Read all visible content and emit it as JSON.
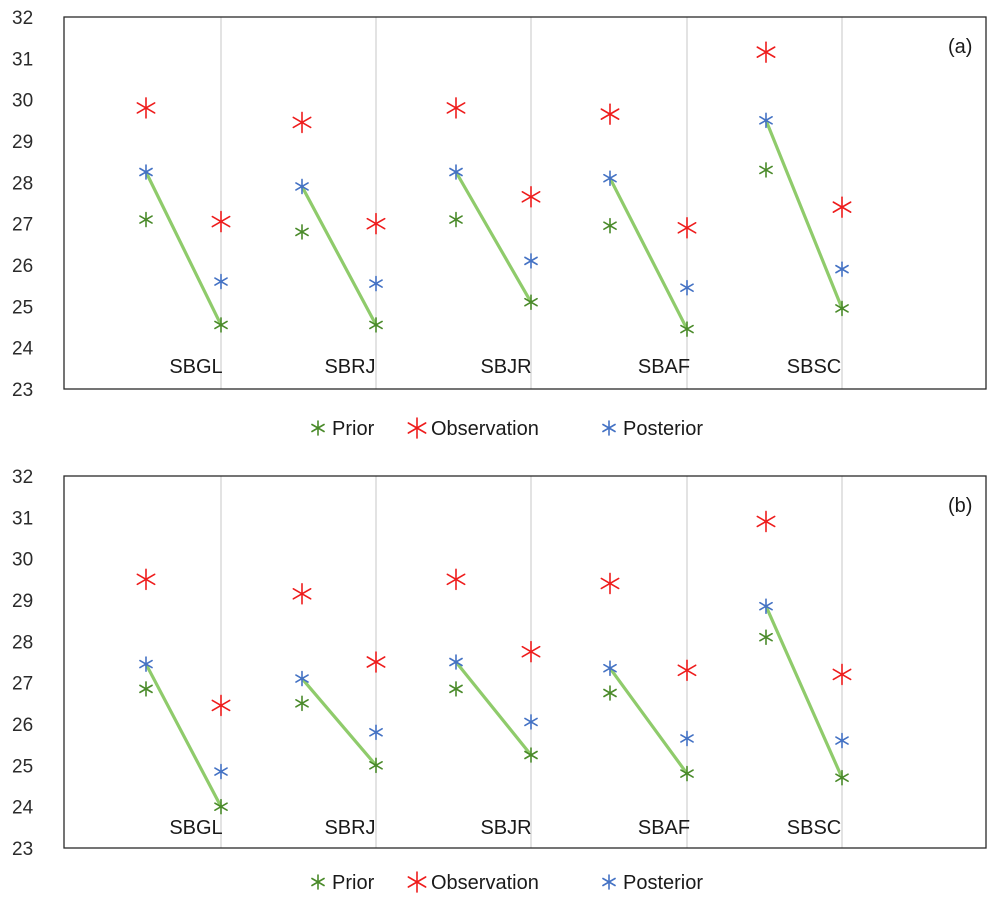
{
  "chart_data": [
    {
      "type": "scatter",
      "panel_label": "(a)",
      "categories": [
        "SBGL",
        "SBRJ",
        "SBJR",
        "SBAF",
        "SBSC"
      ],
      "ylim": [
        23,
        32
      ],
      "yticks": [
        23,
        24,
        25,
        26,
        27,
        28,
        29,
        30,
        31,
        32
      ],
      "vertical_gridlines": true,
      "legend_position": "bottom",
      "series": [
        {
          "name": "Prior",
          "color": "#4a8a2a",
          "left": [
            27.1,
            26.8,
            27.1,
            26.95,
            28.3
          ],
          "right": [
            24.55,
            24.55,
            25.1,
            24.45,
            24.95
          ]
        },
        {
          "name": "Observation",
          "color": "#ee1c1c",
          "left": [
            29.8,
            29.45,
            29.8,
            29.65,
            31.15
          ],
          "right": [
            27.05,
            27.0,
            27.65,
            26.9,
            27.4
          ]
        },
        {
          "name": "Posterior",
          "color": "#4472c4",
          "left": [
            28.25,
            27.9,
            28.25,
            28.1,
            29.5
          ],
          "right": [
            25.6,
            25.55,
            26.1,
            25.45,
            25.9
          ]
        }
      ],
      "connector": {
        "color": "#8fcb6b",
        "from_series": "Posterior",
        "from_side": "left",
        "to_series": "Prior",
        "to_side": "right"
      }
    },
    {
      "type": "scatter",
      "panel_label": "(b)",
      "categories": [
        "SBGL",
        "SBRJ",
        "SBJR",
        "SBAF",
        "SBSC"
      ],
      "ylim": [
        23,
        32
      ],
      "yticks": [
        23,
        24,
        25,
        26,
        27,
        28,
        29,
        30,
        31,
        32
      ],
      "vertical_gridlines": true,
      "legend_position": "bottom",
      "series": [
        {
          "name": "Prior",
          "color": "#4a8a2a",
          "left": [
            26.85,
            26.5,
            26.85,
            26.75,
            28.1
          ],
          "right": [
            24.0,
            25.0,
            25.25,
            24.8,
            24.7
          ]
        },
        {
          "name": "Observation",
          "color": "#ee1c1c",
          "left": [
            29.5,
            29.15,
            29.5,
            29.4,
            30.9
          ],
          "right": [
            26.45,
            27.5,
            27.75,
            27.3,
            27.2
          ]
        },
        {
          "name": "Posterior",
          "color": "#4472c4",
          "left": [
            27.45,
            27.1,
            27.5,
            27.35,
            28.85
          ],
          "right": [
            24.85,
            25.8,
            26.05,
            25.65,
            25.6
          ]
        }
      ],
      "connector": {
        "color": "#8fcb6b",
        "from_series": "Posterior",
        "from_side": "left",
        "to_series": "Prior",
        "to_side": "right"
      }
    }
  ]
}
